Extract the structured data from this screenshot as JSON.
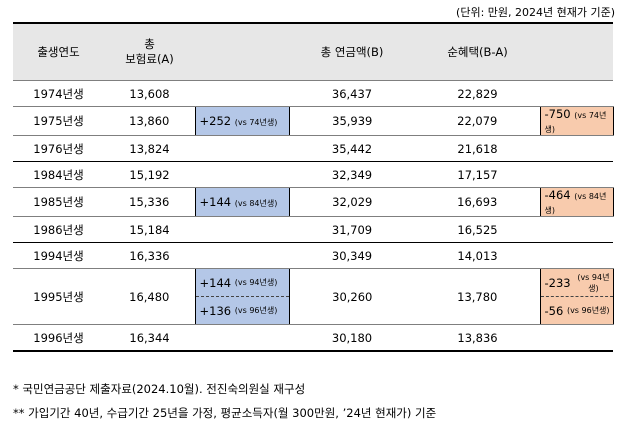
{
  "unit_note": "(단위: 만원, 2024년 현재가 기준)",
  "headers": {
    "birth_year": "출생연도",
    "premium_line1": "총",
    "premium_line2": "보험료(A)",
    "blank1": "",
    "pension": "총 연금액(B)",
    "net_benefit": "순혜택(B-A)",
    "blank2": ""
  },
  "rows": [
    {
      "year": "1974년생",
      "premium": "13,608",
      "premium_diff": "",
      "premium_diff_ref": "",
      "pension": "36,437",
      "net": "22,829",
      "net_diff": "",
      "net_diff_ref": ""
    },
    {
      "year": "1975년생",
      "premium": "13,860",
      "premium_diff": "+252",
      "premium_diff_ref": "(vs 74년생)",
      "pension": "35,939",
      "net": "22,079",
      "net_diff": "-750",
      "net_diff_ref": "(vs 74년생)"
    },
    {
      "year": "1976년생",
      "premium": "13,824",
      "premium_diff": "",
      "premium_diff_ref": "",
      "pension": "35,442",
      "net": "21,618",
      "net_diff": "",
      "net_diff_ref": ""
    },
    {
      "year": "1984년생",
      "premium": "15,192",
      "premium_diff": "",
      "premium_diff_ref": "",
      "pension": "32,349",
      "net": "17,157",
      "net_diff": "",
      "net_diff_ref": ""
    },
    {
      "year": "1985년생",
      "premium": "15,336",
      "premium_diff": "+144",
      "premium_diff_ref": "(vs 84년생)",
      "pension": "32,029",
      "net": "16,693",
      "net_diff": "-464",
      "net_diff_ref": "(vs 84년생)"
    },
    {
      "year": "1986년생",
      "premium": "15,184",
      "premium_diff": "",
      "premium_diff_ref": "",
      "pension": "31,709",
      "net": "16,525",
      "net_diff": "",
      "net_diff_ref": ""
    },
    {
      "year": "1994년생",
      "premium": "16,336",
      "premium_diff": "",
      "premium_diff_ref": "",
      "pension": "30,349",
      "net": "14,013",
      "net_diff": "",
      "net_diff_ref": ""
    },
    {
      "year": "1995년생",
      "premium": "16,480",
      "premium_diff_a": "+144",
      "premium_diff_a_ref": "(vs 94년생)",
      "premium_diff_b": "+136",
      "premium_diff_b_ref": "(vs 96년생)",
      "pension": "30,260",
      "net": "13,780",
      "net_diff_a": "-233",
      "net_diff_a_ref": "(vs 94년생)",
      "net_diff_b": "-56",
      "net_diff_b_ref": "(vs 96년생)"
    },
    {
      "year": "1996년생",
      "premium": "16,344",
      "premium_diff": "",
      "premium_diff_ref": "",
      "pension": "30,180",
      "net": "13,836",
      "net_diff": "",
      "net_diff_ref": ""
    }
  ],
  "footnotes": [
    "*  국민연금공단 제출자료(2024.10월). 전진숙의원실 재구성",
    "** 가입기간 40년, 수급기간 25년을 가정, 평균소득자(월 300만원, ’24년 현재가) 기준"
  ],
  "colors": {
    "header_bg": "#e7e7e7",
    "increase_bg": "#b4c7e7",
    "decrease_bg": "#f8cbad"
  }
}
